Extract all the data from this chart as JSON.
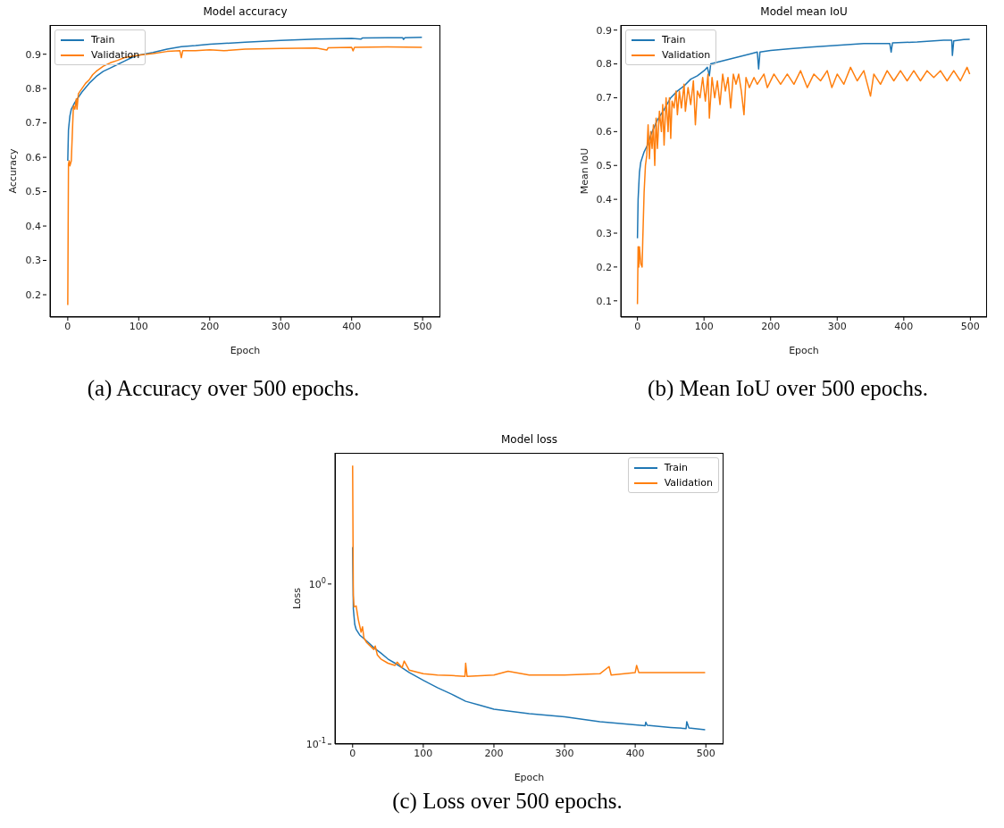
{
  "chart_data": [
    {
      "type": "line",
      "title": "Model accuracy",
      "xlabel": "Epoch",
      "ylabel": "Accuracy",
      "annotations": [
        "(a) Accuracy over 500 epochs."
      ],
      "legend": "top left",
      "xlim": [
        -25,
        525
      ],
      "ylim": [
        0.135,
        0.985
      ],
      "xticks": [
        0,
        100,
        200,
        300,
        400,
        500
      ],
      "yticks": [
        0.2,
        0.3,
        0.4,
        0.5,
        0.6,
        0.7,
        0.8,
        0.9
      ],
      "series": [
        {
          "name": "Train",
          "color": "#1f77b4",
          "x": [
            0,
            1,
            3,
            5,
            10,
            20,
            30,
            40,
            50,
            60,
            70,
            80,
            90,
            100,
            120,
            140,
            160,
            180,
            200,
            250,
            300,
            350,
            400,
            413,
            415,
            450,
            472,
            473,
            475,
            499
          ],
          "values": [
            0.59,
            0.68,
            0.72,
            0.74,
            0.76,
            0.79,
            0.815,
            0.835,
            0.85,
            0.86,
            0.87,
            0.88,
            0.89,
            0.897,
            0.905,
            0.915,
            0.922,
            0.925,
            0.929,
            0.935,
            0.94,
            0.944,
            0.946,
            0.944,
            0.947,
            0.948,
            0.948,
            0.943,
            0.948,
            0.949
          ]
        },
        {
          "name": "Validation",
          "color": "#ff7f0e",
          "x": [
            0,
            1,
            2,
            3,
            5,
            7,
            8,
            10,
            12,
            13,
            15,
            20,
            25,
            30,
            35,
            40,
            50,
            60,
            70,
            80,
            100,
            120,
            140,
            158,
            160,
            162,
            180,
            200,
            220,
            250,
            300,
            350,
            365,
            367,
            400,
            402,
            404,
            450,
            499
          ],
          "values": [
            0.17,
            0.58,
            0.59,
            0.575,
            0.59,
            0.7,
            0.75,
            0.74,
            0.77,
            0.74,
            0.785,
            0.8,
            0.815,
            0.825,
            0.84,
            0.85,
            0.865,
            0.875,
            0.882,
            0.89,
            0.897,
            0.902,
            0.908,
            0.91,
            0.89,
            0.91,
            0.91,
            0.913,
            0.91,
            0.915,
            0.917,
            0.918,
            0.912,
            0.919,
            0.92,
            0.91,
            0.92,
            0.921,
            0.92
          ]
        }
      ]
    },
    {
      "type": "line",
      "title": "Model mean IoU",
      "xlabel": "Epoch",
      "ylabel": "Mean IoU",
      "annotations": [
        "(b) Mean IoU over 500 epochs."
      ],
      "legend": "top left",
      "xlim": [
        -25,
        525
      ],
      "ylim": [
        0.052,
        0.915
      ],
      "xticks": [
        0,
        100,
        200,
        300,
        400,
        500
      ],
      "yticks": [
        0.1,
        0.2,
        0.3,
        0.4,
        0.5,
        0.6,
        0.7,
        0.8,
        0.9
      ],
      "series": [
        {
          "name": "Train",
          "color": "#1f77b4",
          "x": [
            0,
            1,
            3,
            5,
            10,
            15,
            20,
            30,
            40,
            50,
            60,
            70,
            80,
            90,
            100,
            105,
            108,
            110,
            130,
            150,
            170,
            180,
            182,
            184,
            200,
            230,
            260,
            300,
            340,
            379,
            381,
            383,
            420,
            460,
            472,
            473,
            475,
            490,
            499
          ],
          "values": [
            0.285,
            0.4,
            0.48,
            0.51,
            0.54,
            0.56,
            0.59,
            0.635,
            0.665,
            0.7,
            0.72,
            0.735,
            0.755,
            0.765,
            0.78,
            0.79,
            0.765,
            0.8,
            0.81,
            0.82,
            0.83,
            0.835,
            0.785,
            0.835,
            0.84,
            0.845,
            0.85,
            0.855,
            0.86,
            0.86,
            0.835,
            0.862,
            0.865,
            0.87,
            0.87,
            0.825,
            0.868,
            0.872,
            0.873
          ]
        },
        {
          "name": "Validation",
          "color": "#ff7f0e",
          "x": [
            0,
            1,
            2,
            3,
            5,
            7,
            8,
            10,
            12,
            14,
            16,
            18,
            20,
            22,
            24,
            26,
            28,
            30,
            33,
            36,
            38,
            40,
            43,
            46,
            48,
            50,
            52,
            55,
            58,
            60,
            63,
            66,
            70,
            72,
            76,
            80,
            84,
            87,
            90,
            94,
            98,
            102,
            106,
            108,
            112,
            116,
            120,
            124,
            128,
            132,
            136,
            140,
            144,
            148,
            152,
            156,
            160,
            163,
            168,
            175,
            180,
            190,
            195,
            205,
            215,
            225,
            235,
            245,
            255,
            265,
            275,
            285,
            292,
            300,
            310,
            320,
            330,
            340,
            350,
            355,
            365,
            375,
            385,
            395,
            405,
            415,
            425,
            435,
            445,
            455,
            465,
            475,
            485,
            495,
            499
          ],
          "values": [
            0.09,
            0.26,
            0.2,
            0.26,
            0.21,
            0.2,
            0.28,
            0.42,
            0.5,
            0.53,
            0.62,
            0.52,
            0.6,
            0.55,
            0.62,
            0.5,
            0.64,
            0.55,
            0.66,
            0.6,
            0.68,
            0.56,
            0.7,
            0.6,
            0.7,
            0.58,
            0.69,
            0.67,
            0.72,
            0.65,
            0.72,
            0.67,
            0.74,
            0.66,
            0.73,
            0.68,
            0.75,
            0.62,
            0.72,
            0.7,
            0.76,
            0.69,
            0.77,
            0.64,
            0.76,
            0.7,
            0.75,
            0.68,
            0.77,
            0.72,
            0.76,
            0.67,
            0.77,
            0.74,
            0.77,
            0.72,
            0.65,
            0.76,
            0.73,
            0.76,
            0.74,
            0.77,
            0.73,
            0.77,
            0.74,
            0.77,
            0.74,
            0.78,
            0.73,
            0.77,
            0.75,
            0.78,
            0.73,
            0.77,
            0.74,
            0.79,
            0.75,
            0.78,
            0.705,
            0.77,
            0.74,
            0.78,
            0.75,
            0.78,
            0.75,
            0.78,
            0.75,
            0.78,
            0.76,
            0.78,
            0.75,
            0.78,
            0.75,
            0.79,
            0.77
          ]
        }
      ]
    },
    {
      "type": "line",
      "title": "Model loss",
      "xlabel": "Epoch",
      "ylabel": "Loss",
      "annotations": [
        "(c) Loss over 500 epochs."
      ],
      "legend": "top right",
      "log": true,
      "xlim": [
        -25,
        525
      ],
      "ylim": [
        0.1,
        6.6
      ],
      "xticks": [
        0,
        100,
        200,
        300,
        400,
        500
      ],
      "yticks": [
        {
          "value": 0.1,
          "label": "10$^{-1}$"
        },
        {
          "value": 1,
          "label": "10$^{0}$"
        }
      ],
      "series": [
        {
          "name": "Train",
          "color": "#1f77b4",
          "x": [
            0,
            1,
            3,
            5,
            10,
            20,
            30,
            40,
            50,
            60,
            70,
            80,
            100,
            120,
            140,
            160,
            180,
            200,
            250,
            300,
            350,
            400,
            414,
            415,
            417,
            450,
            472,
            473,
            476,
            499
          ],
          "values": [
            1.7,
            0.7,
            0.56,
            0.52,
            0.48,
            0.44,
            0.4,
            0.37,
            0.34,
            0.32,
            0.3,
            0.28,
            0.25,
            0.225,
            0.205,
            0.185,
            0.175,
            0.165,
            0.155,
            0.148,
            0.138,
            0.132,
            0.13,
            0.137,
            0.131,
            0.127,
            0.125,
            0.138,
            0.126,
            0.123
          ]
        },
        {
          "name": "Validation",
          "color": "#ff7f0e",
          "x": [
            0,
            1,
            2,
            5,
            8,
            12,
            14,
            16,
            20,
            30,
            32,
            35,
            40,
            50,
            60,
            63,
            70,
            73,
            80,
            100,
            120,
            140,
            159,
            160,
            162,
            200,
            220,
            250,
            300,
            350,
            363,
            366,
            400,
            402,
            405,
            450,
            499
          ],
          "values": [
            5.5,
            0.85,
            0.72,
            0.73,
            0.6,
            0.5,
            0.54,
            0.46,
            0.43,
            0.39,
            0.41,
            0.36,
            0.34,
            0.32,
            0.31,
            0.325,
            0.3,
            0.33,
            0.29,
            0.275,
            0.27,
            0.268,
            0.265,
            0.32,
            0.265,
            0.27,
            0.285,
            0.27,
            0.27,
            0.275,
            0.305,
            0.27,
            0.28,
            0.31,
            0.28,
            0.28,
            0.28
          ]
        }
      ]
    }
  ]
}
